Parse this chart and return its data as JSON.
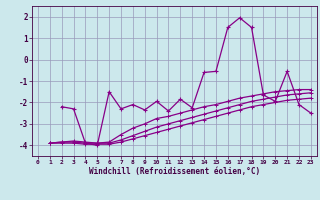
{
  "xlabel": "Windchill (Refroidissement éolien,°C)",
  "background_color": "#cce8ec",
  "grid_color": "#9999bb",
  "line_color": "#880088",
  "xlim": [
    -0.5,
    23.5
  ],
  "ylim": [
    -4.5,
    2.5
  ],
  "xticks": [
    0,
    1,
    2,
    3,
    4,
    5,
    6,
    7,
    8,
    9,
    10,
    11,
    12,
    13,
    14,
    15,
    16,
    17,
    18,
    19,
    20,
    21,
    22,
    23
  ],
  "yticks": [
    -4,
    -3,
    -2,
    -1,
    0,
    1,
    2
  ],
  "series1": [
    null,
    null,
    -2.2,
    -2.3,
    -3.9,
    -4.0,
    -1.5,
    -2.3,
    -2.1,
    -2.35,
    -1.95,
    -2.4,
    -1.85,
    -2.25,
    -0.6,
    -0.55,
    1.5,
    1.95,
    1.5,
    -1.65,
    -1.95,
    -0.55,
    -2.1,
    -2.5
  ],
  "series2": [
    null,
    -3.9,
    -3.85,
    -3.8,
    -3.85,
    -3.9,
    -3.85,
    -3.5,
    -3.2,
    -3.0,
    -2.75,
    -2.65,
    -2.5,
    -2.35,
    -2.2,
    -2.1,
    -1.95,
    -1.8,
    -1.7,
    -1.6,
    -1.5,
    -1.45,
    -1.4,
    -1.4
  ],
  "series3": [
    null,
    -3.9,
    -3.85,
    -3.85,
    -3.9,
    -3.9,
    -3.9,
    -3.75,
    -3.55,
    -3.35,
    -3.15,
    -3.0,
    -2.85,
    -2.7,
    -2.55,
    -2.4,
    -2.25,
    -2.1,
    -1.95,
    -1.85,
    -1.75,
    -1.65,
    -1.6,
    -1.55
  ],
  "series4": [
    null,
    -3.9,
    -3.9,
    -3.9,
    -3.95,
    -3.95,
    -3.95,
    -3.85,
    -3.7,
    -3.55,
    -3.4,
    -3.25,
    -3.1,
    -2.95,
    -2.8,
    -2.65,
    -2.5,
    -2.35,
    -2.2,
    -2.1,
    -2.0,
    -1.9,
    -1.85,
    -1.8
  ]
}
